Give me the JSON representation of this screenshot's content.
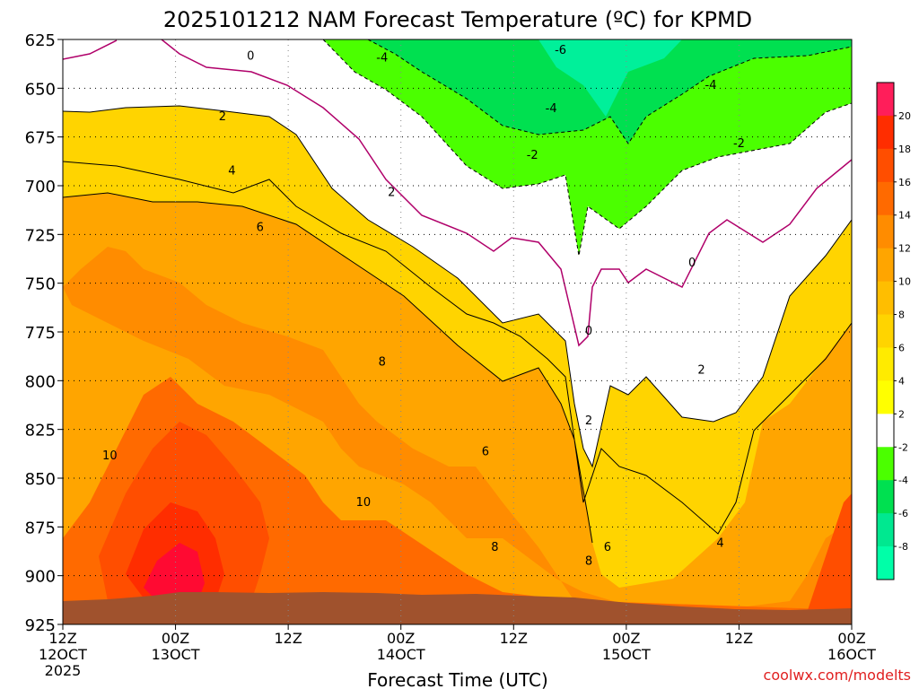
{
  "chart_data": {
    "type": "heatmap",
    "title": "2025101212 NAM Forecast Temperature (ºC) for KPMD",
    "xlabel": "Forecast Time (UTC)",
    "credit": "coolwx.com/modelts",
    "y_ticks": [
      "625",
      "650",
      "675",
      "700",
      "725",
      "750",
      "775",
      "800",
      "825",
      "850",
      "875",
      "900",
      "925"
    ],
    "y_range": [
      625,
      925
    ],
    "x_ticks": [
      {
        "hour": 0,
        "label": "12Z",
        "date": "12OCT",
        "year": "2025"
      },
      {
        "hour": 12,
        "label": "00Z",
        "date": "13OCT",
        "year": ""
      },
      {
        "hour": 24,
        "label": "12Z",
        "date": "",
        "year": ""
      },
      {
        "hour": 36,
        "label": "00Z",
        "date": "14OCT",
        "year": ""
      },
      {
        "hour": 48,
        "label": "12Z",
        "date": "",
        "year": ""
      },
      {
        "hour": 60,
        "label": "00Z",
        "date": "15OCT",
        "year": ""
      },
      {
        "hour": 72,
        "label": "12Z",
        "date": "",
        "year": ""
      },
      {
        "hour": 84,
        "label": "00Z",
        "date": "16OCT",
        "year": ""
      }
    ],
    "x_range": [
      0,
      84
    ],
    "grid": true,
    "colorbar": {
      "labels": [
        "20",
        "18",
        "16",
        "14",
        "12",
        "10",
        "8",
        "6",
        "4",
        "2",
        "-2",
        "-4",
        "-6",
        "-8"
      ],
      "colors": [
        "#ff1e5a",
        "#ff2d00",
        "#ff4e00",
        "#ff6a00",
        "#ff8c00",
        "#ffa500",
        "#ffbe00",
        "#ffd400",
        "#ffeb00",
        "#ffff00",
        "#ffffff",
        "#4bff00",
        "#00e050",
        "#00e890",
        "#00ffa8"
      ]
    },
    "contour_labels": [
      {
        "text": "0",
        "hour": 20,
        "p": 633
      },
      {
        "text": "-4",
        "hour": 34,
        "p": 634
      },
      {
        "text": "-6",
        "hour": 53,
        "p": 630
      },
      {
        "text": "-4",
        "hour": 69,
        "p": 648
      },
      {
        "text": "-4",
        "hour": 52,
        "p": 660
      },
      {
        "text": "2",
        "hour": 17,
        "p": 664
      },
      {
        "text": "-2",
        "hour": 50,
        "p": 684
      },
      {
        "text": "-2",
        "hour": 72,
        "p": 678
      },
      {
        "text": "4",
        "hour": 18,
        "p": 692
      },
      {
        "text": "2",
        "hour": 35,
        "p": 703
      },
      {
        "text": "6",
        "hour": 21,
        "p": 721
      },
      {
        "text": "0",
        "hour": 67,
        "p": 739
      },
      {
        "text": "0",
        "hour": 56,
        "p": 774
      },
      {
        "text": "8",
        "hour": 34,
        "p": 790
      },
      {
        "text": "2",
        "hour": 68,
        "p": 794
      },
      {
        "text": "2",
        "hour": 56,
        "p": 820
      },
      {
        "text": "10",
        "hour": 5,
        "p": 838
      },
      {
        "text": "6",
        "hour": 45,
        "p": 836
      },
      {
        "text": "10",
        "hour": 32,
        "p": 862
      },
      {
        "text": "4",
        "hour": 70,
        "p": 883
      },
      {
        "text": "8",
        "hour": 46,
        "p": 885
      },
      {
        "text": "6",
        "hour": 58,
        "p": 885
      },
      {
        "text": "8",
        "hour": 56,
        "p": 892
      }
    ]
  }
}
